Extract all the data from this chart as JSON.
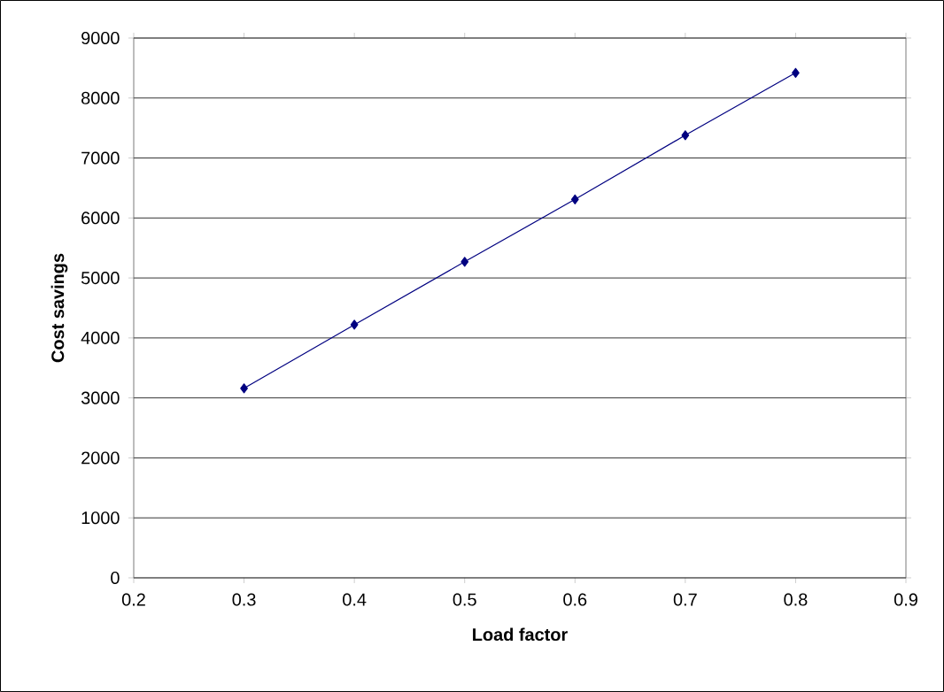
{
  "chart_data": {
    "type": "line",
    "xlabel": "Load factor",
    "ylabel": "Cost savings",
    "x": [
      0.3,
      0.4,
      0.5,
      0.6,
      0.7,
      0.8
    ],
    "series": [
      {
        "color": "#000080",
        "values": [
          3160,
          4220,
          5270,
          6310,
          7380,
          8420
        ]
      }
    ],
    "xlim": [
      0.2,
      0.9
    ],
    "xticks": [
      0.2,
      0.3,
      0.4,
      0.5,
      0.6,
      0.7,
      0.8,
      0.9
    ],
    "ylim": [
      0,
      9000
    ],
    "yticks": [
      0,
      1000,
      2000,
      3000,
      4000,
      5000,
      6000,
      7000,
      8000,
      9000
    ],
    "grid": "y",
    "marker": "diamond",
    "line_style": "solid"
  }
}
